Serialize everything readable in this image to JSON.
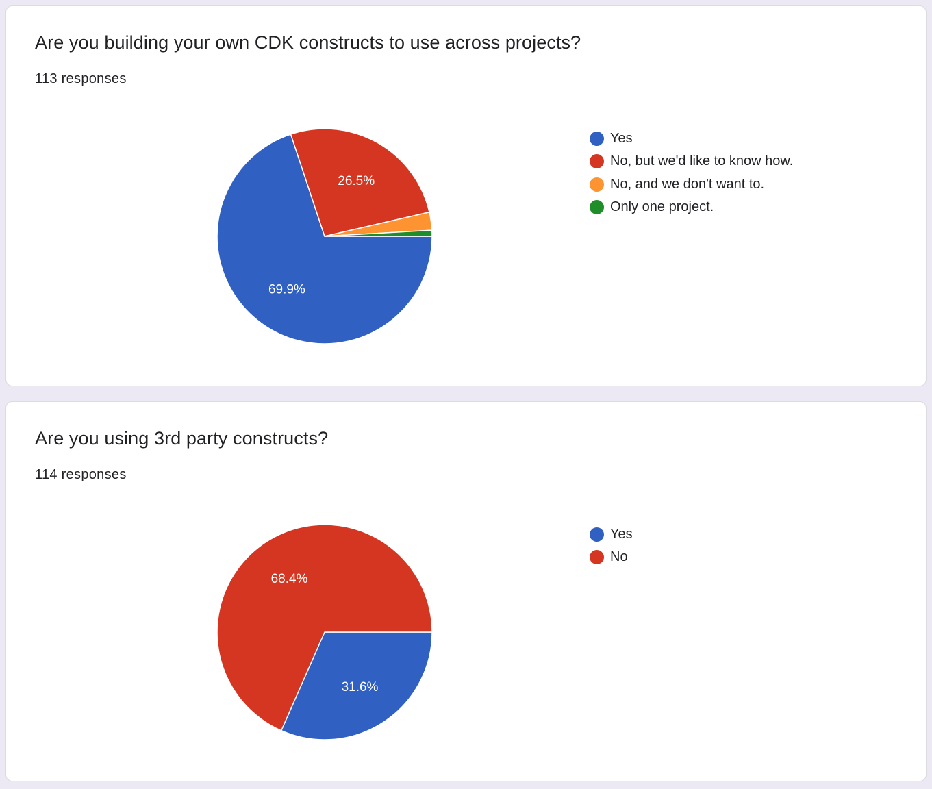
{
  "questions": [
    {
      "title": "Are you building your own CDK constructs to use across projects?",
      "responses": "113 responses"
    },
    {
      "title": "Are you using 3rd party constructs?",
      "responses": "114 responses"
    }
  ],
  "chart_data": [
    {
      "type": "pie",
      "categories": [
        "Yes",
        "No, but we'd like to know how.",
        "No, and we don't want to.",
        "Only one project."
      ],
      "values": [
        69.9,
        26.5,
        2.7,
        0.9
      ],
      "data_labels": [
        "69.9%",
        "26.5%",
        "",
        ""
      ],
      "colors": [
        "#3061c2",
        "#d43621",
        "#fd9331",
        "#1e8d2a"
      ],
      "legend": "right"
    },
    {
      "type": "pie",
      "categories": [
        "Yes",
        "No"
      ],
      "values": [
        31.6,
        68.4
      ],
      "data_labels": [
        "31.6%",
        "68.4%"
      ],
      "colors": [
        "#3061c2",
        "#d43621"
      ],
      "legend": "right"
    }
  ]
}
